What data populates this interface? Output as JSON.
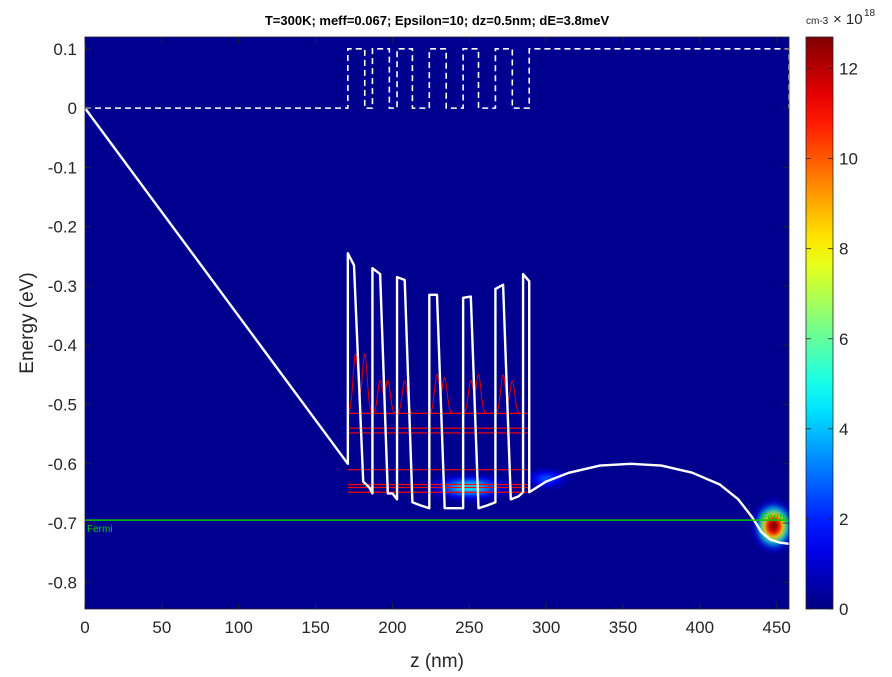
{
  "chart_data": {
    "type": "heatmap",
    "title": "T=300K; meff=0.067; Epsilon=10; dz=0.5nm; dE=3.8meV",
    "xlabel": "z (nm)",
    "ylabel": "Energy (eV)",
    "xlim": [
      0,
      458
    ],
    "ylim": [
      -0.845,
      0.12
    ],
    "x_ticks": [
      0,
      50,
      100,
      150,
      200,
      250,
      300,
      350,
      400,
      450
    ],
    "y_ticks": [
      0.1,
      0,
      -0.1,
      -0.2,
      -0.3,
      -0.4,
      -0.5,
      -0.6,
      -0.7,
      -0.8
    ],
    "y_tick_labels": [
      "0.1",
      "0",
      "-0.1",
      "-0.2",
      "-0.3",
      "-0.4",
      "-0.5",
      "-0.6",
      "-0.7",
      "-0.8"
    ],
    "background_color": "#00008f",
    "colorbar": {
      "unit_label": "cm-3",
      "multiplier_text": "× 10",
      "multiplier_exponent": "18",
      "ticks": [
        0,
        2,
        4,
        6,
        8,
        10,
        12
      ],
      "range": [
        0,
        12.7
      ],
      "colormap": "jet"
    },
    "fermi": {
      "energy": -0.695,
      "label": "Fermi",
      "color": "#00c800"
    },
    "conduction_band": {
      "color": "#ffffff",
      "points": [
        [
          0,
          0
        ],
        [
          171,
          -0.6
        ],
        [
          171,
          -0.245
        ],
        [
          175,
          -0.265
        ],
        [
          181,
          -0.63
        ],
        [
          185,
          -0.64
        ],
        [
          187,
          -0.65
        ],
        [
          187,
          -0.27
        ],
        [
          192,
          -0.28
        ],
        [
          197,
          -0.65
        ],
        [
          200,
          -0.65
        ],
        [
          203,
          -0.66
        ],
        [
          203,
          -0.285
        ],
        [
          208,
          -0.29
        ],
        [
          213,
          -0.665
        ],
        [
          218,
          -0.67
        ],
        [
          224,
          -0.675
        ],
        [
          224,
          -0.315
        ],
        [
          229,
          -0.315
        ],
        [
          234,
          -0.675
        ],
        [
          240,
          -0.675
        ],
        [
          246,
          -0.675
        ],
        [
          246,
          -0.32
        ],
        [
          251,
          -0.318
        ],
        [
          256,
          -0.675
        ],
        [
          262,
          -0.67
        ],
        [
          267,
          -0.665
        ],
        [
          267,
          -0.305
        ],
        [
          272,
          -0.298
        ],
        [
          277,
          -0.66
        ],
        [
          282,
          -0.655
        ],
        [
          285,
          -0.648
        ],
        [
          285,
          -0.28
        ],
        [
          289,
          -0.292
        ],
        [
          289,
          -0.648
        ],
        [
          300,
          -0.63
        ],
        [
          315,
          -0.615
        ],
        [
          335,
          -0.603
        ],
        [
          355,
          -0.6
        ],
        [
          375,
          -0.603
        ],
        [
          395,
          -0.615
        ],
        [
          413,
          -0.635
        ],
        [
          425,
          -0.66
        ],
        [
          434,
          -0.69
        ],
        [
          440,
          -0.715
        ],
        [
          446,
          -0.728
        ],
        [
          452,
          -0.733
        ],
        [
          458,
          -0.735
        ]
      ]
    },
    "dashed_band": {
      "color": "#ffffff",
      "points": [
        [
          0,
          0
        ],
        [
          171,
          0
        ],
        [
          171,
          0.1
        ],
        [
          182,
          0.1
        ],
        [
          182,
          0
        ],
        [
          187,
          0
        ],
        [
          187,
          0.1
        ],
        [
          198,
          0.1
        ],
        [
          198,
          0
        ],
        [
          203,
          0
        ],
        [
          203,
          0.1
        ],
        [
          213,
          0.1
        ],
        [
          213,
          0
        ],
        [
          224,
          0
        ],
        [
          224,
          0.1
        ],
        [
          235,
          0.1
        ],
        [
          235,
          0
        ],
        [
          246,
          0
        ],
        [
          246,
          0.1
        ],
        [
          256,
          0.1
        ],
        [
          256,
          0
        ],
        [
          267,
          0
        ],
        [
          267,
          0.1
        ],
        [
          278,
          0.1
        ],
        [
          278,
          0
        ],
        [
          289,
          0
        ],
        [
          289,
          0.1
        ],
        [
          458,
          0.1
        ],
        [
          458,
          0
        ]
      ]
    },
    "subband_levels": {
      "color": "#ff0000",
      "x_range": [
        171,
        289
      ],
      "energies": [
        -0.515,
        -0.54,
        -0.548,
        -0.61,
        -0.635,
        -0.64,
        -0.648
      ]
    },
    "wavefunctions": {
      "color": "#e00000",
      "baseline": -0.515,
      "peaks": [
        {
          "z": 176,
          "height": 0.1,
          "width": 1.6
        },
        {
          "z": 182,
          "height": 0.1,
          "width": 1.6
        },
        {
          "z": 192,
          "height": 0.055,
          "width": 1.6
        },
        {
          "z": 197,
          "height": 0.055,
          "width": 1.6
        },
        {
          "z": 208,
          "height": 0.055,
          "width": 1.6
        },
        {
          "z": 229,
          "height": 0.065,
          "width": 1.6
        },
        {
          "z": 234,
          "height": 0.06,
          "width": 1.6
        },
        {
          "z": 251,
          "height": 0.055,
          "width": 1.6
        },
        {
          "z": 256,
          "height": 0.065,
          "width": 1.6
        },
        {
          "z": 272,
          "height": 0.065,
          "width": 1.6
        },
        {
          "z": 278,
          "height": 0.055,
          "width": 1.6
        }
      ]
    },
    "density_spots": [
      {
        "z": 448,
        "e": -0.705,
        "rz": 16,
        "re": 0.05,
        "peak": 12.7
      },
      {
        "z": 250,
        "e": -0.64,
        "rz": 35,
        "re": 0.03,
        "peak": 4.5
      },
      {
        "z": 300,
        "e": -0.625,
        "rz": 20,
        "re": 0.025,
        "peak": 2.5
      }
    ]
  }
}
